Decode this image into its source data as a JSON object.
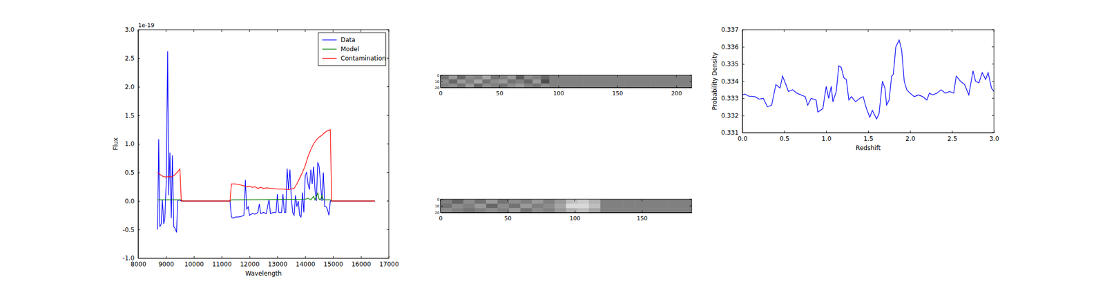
{
  "chart_data": [
    {
      "type": "line",
      "x_label": "Wavelength",
      "y_label": "Flux",
      "annotations": [
        {
          "text": "1e-19"
        }
      ],
      "xlim": [
        8000,
        17000
      ],
      "xticks": [
        8000,
        9000,
        10000,
        11000,
        12000,
        13000,
        14000,
        15000,
        16000,
        17000
      ],
      "ylim": [
        -1.0,
        3.0
      ],
      "yticks": [
        {
          "value": -1.0,
          "label": "-1.0"
        },
        {
          "value": -0.5,
          "label": "-0.5"
        },
        {
          "value": 0.0,
          "label": "0.0"
        },
        {
          "value": 0.5,
          "label": "0.5"
        },
        {
          "value": 1.0,
          "label": "1.0"
        },
        {
          "value": 1.5,
          "label": "1.5"
        },
        {
          "value": 2.0,
          "label": "2.0"
        },
        {
          "value": 2.5,
          "label": "2.5"
        },
        {
          "value": 3.0,
          "label": "3.0"
        }
      ],
      "legend": "upper right",
      "series": [
        {
          "name": "Data",
          "color": "#0000ff",
          "x": [
            8700,
            8740,
            8780,
            8830,
            8870,
            8920,
            8960,
            9010,
            9060,
            9100,
            9140,
            9190,
            9230,
            9280,
            9330,
            9380,
            9420,
            9470,
            9550,
            11300,
            11350,
            11400,
            11500,
            11600,
            11700,
            11800,
            11850,
            11900,
            11950,
            12000,
            12100,
            12200,
            12300,
            12350,
            12400,
            12500,
            12600,
            12700,
            12750,
            12850,
            12950,
            13000,
            13050,
            13150,
            13200,
            13250,
            13300,
            13350,
            13400,
            13450,
            13500,
            13550,
            13600,
            13650,
            13700,
            13750,
            13800,
            13850,
            13900,
            13950,
            14000,
            14050,
            14100,
            14150,
            14200,
            14250,
            14300,
            14350,
            14400,
            14450,
            14500,
            14550,
            14600,
            14650,
            14700,
            14750,
            14800,
            14850,
            14900,
            14950,
            16500
          ],
          "values": [
            -0.5,
            1.08,
            -0.45,
            -0.4,
            0.02,
            -0.4,
            -0.3,
            0.35,
            2.62,
            0.1,
            0.85,
            -0.3,
            0.8,
            -0.45,
            -0.48,
            -0.55,
            0.0,
            0.02,
            0.0,
            0.0,
            -0.28,
            -0.3,
            -0.28,
            -0.28,
            -0.27,
            -0.25,
            0.37,
            -0.15,
            -0.1,
            -0.25,
            -0.22,
            -0.23,
            -0.2,
            -0.05,
            -0.22,
            -0.2,
            -0.22,
            0.03,
            -0.22,
            -0.2,
            -0.2,
            0.12,
            -0.2,
            -0.2,
            0.12,
            -0.2,
            -0.2,
            0.57,
            0.2,
            0.55,
            0.05,
            -0.2,
            -0.25,
            0.1,
            -0.1,
            0.0,
            -0.25,
            -0.28,
            0.15,
            -0.2,
            0.45,
            0.5,
            0.3,
            0.2,
            0.55,
            0.3,
            0.6,
            0.2,
            0.0,
            0.68,
            0.6,
            0.3,
            0.0,
            0.5,
            -0.1,
            -0.1,
            -0.15,
            -0.25,
            0.0,
            0.0,
            0.0
          ]
        },
        {
          "name": "Model",
          "color": "#008000",
          "x": [
            8700,
            9550,
            9600,
            11300,
            11350,
            14000,
            14100,
            14200,
            14300,
            14350,
            14450,
            14500,
            14550,
            14600,
            14650,
            14900,
            14950,
            16500
          ],
          "values": [
            0.02,
            0.02,
            0.0,
            0.0,
            0.02,
            0.03,
            0.05,
            0.02,
            0.08,
            0.02,
            0.14,
            0.03,
            0.02,
            0.1,
            0.02,
            0.02,
            0.0,
            0.0
          ]
        },
        {
          "name": "Contamination",
          "color": "#ff0000",
          "x": [
            8700,
            8800,
            8900,
            9000,
            9100,
            9200,
            9300,
            9400,
            9500,
            9550,
            11300,
            11350,
            11500,
            11700,
            11900,
            12000,
            12100,
            12200,
            12300,
            12400,
            12500,
            12600,
            12800,
            13000,
            13200,
            13400,
            13600,
            13700,
            13800,
            13900,
            14000,
            14100,
            14200,
            14300,
            14400,
            14500,
            14600,
            14700,
            14800,
            14900,
            14950,
            16500
          ],
          "values": [
            0.5,
            0.46,
            0.43,
            0.42,
            0.43,
            0.42,
            0.45,
            0.5,
            0.56,
            0.0,
            0.0,
            0.3,
            0.3,
            0.28,
            0.25,
            0.26,
            0.24,
            0.25,
            0.22,
            0.24,
            0.22,
            0.23,
            0.22,
            0.21,
            0.21,
            0.2,
            0.22,
            0.3,
            0.4,
            0.5,
            0.62,
            0.78,
            0.9,
            1.0,
            1.07,
            1.12,
            1.15,
            1.2,
            1.23,
            1.25,
            0.0,
            0.0
          ]
        }
      ]
    },
    {
      "type": "heatmap",
      "xlim": [
        0,
        213
      ],
      "xticks": [
        0,
        50,
        100,
        150,
        200
      ],
      "ylim": [
        0,
        20
      ],
      "yticks": [
        0,
        10,
        20
      ],
      "color_range": [
        0,
        1
      ],
      "cells": [
        [
          0.45,
          0.6,
          0.4,
          0.55,
          0.5,
          0.65,
          0.45,
          0.5,
          0.6,
          0.35,
          0.55,
          0.5,
          0.4,
          0.5,
          0.5,
          0.5,
          0.5,
          0.5,
          0.5,
          0.5,
          0.5,
          0.5,
          0.5,
          0.5,
          0.5,
          0.5,
          0.5,
          0.5,
          0.5,
          0.5
        ],
        [
          0.55,
          0.4,
          0.6,
          0.5,
          0.65,
          0.45,
          0.55,
          0.6,
          0.45,
          0.5,
          0.4,
          0.6,
          0.3,
          0.5,
          0.5,
          0.5,
          0.5,
          0.5,
          0.5,
          0.5,
          0.5,
          0.5,
          0.5,
          0.5,
          0.5,
          0.5,
          0.5,
          0.5,
          0.5,
          0.5
        ],
        [
          0.5,
          0.55,
          0.45,
          0.6,
          0.4,
          0.55,
          0.5,
          0.45,
          0.55,
          0.6,
          0.5,
          0.45,
          0.55,
          0.5,
          0.5,
          0.5,
          0.5,
          0.5,
          0.5,
          0.5,
          0.5,
          0.5,
          0.5,
          0.5,
          0.5,
          0.5,
          0.5,
          0.5,
          0.5,
          0.5
        ]
      ]
    },
    {
      "type": "heatmap",
      "xlim": [
        0,
        187
      ],
      "xticks": [
        0,
        50,
        100,
        150
      ],
      "ylim": [
        0,
        20
      ],
      "yticks": [
        0,
        10,
        20
      ],
      "color_range": [
        0,
        1
      ],
      "cells": [
        [
          0.5,
          0.4,
          0.55,
          0.45,
          0.6,
          0.45,
          0.55,
          0.5,
          0.6,
          0.5,
          0.6,
          0.75,
          0.8,
          0.7,
          0.5,
          0.5,
          0.5,
          0.5,
          0.5,
          0.5,
          0.5,
          0.5
        ],
        [
          0.45,
          0.55,
          0.5,
          0.6,
          0.4,
          0.55,
          0.45,
          0.6,
          0.5,
          0.55,
          0.65,
          0.85,
          0.85,
          0.75,
          0.5,
          0.5,
          0.5,
          0.5,
          0.5,
          0.5,
          0.5,
          0.5
        ],
        [
          0.55,
          0.5,
          0.45,
          0.5,
          0.55,
          0.5,
          0.6,
          0.45,
          0.55,
          0.5,
          0.6,
          0.7,
          0.75,
          0.65,
          0.5,
          0.5,
          0.5,
          0.5,
          0.5,
          0.5,
          0.5,
          0.5
        ]
      ]
    },
    {
      "type": "line",
      "x_label": "Redshift",
      "y_label": "Probability Density",
      "xlim": [
        0.0,
        3.0
      ],
      "xticks": [
        {
          "value": 0.0,
          "label": "0.0"
        },
        {
          "value": 0.5,
          "label": "0.5"
        },
        {
          "value": 1.0,
          "label": "1.0"
        },
        {
          "value": 1.5,
          "label": "1.5"
        },
        {
          "value": 2.0,
          "label": "2.0"
        },
        {
          "value": 2.5,
          "label": "2.5"
        },
        {
          "value": 3.0,
          "label": "3.0"
        }
      ],
      "ylim": [
        0.331,
        0.337
      ],
      "yticks": [
        0.331,
        0.332,
        0.333,
        0.334,
        0.335,
        0.336,
        0.337
      ],
      "series": [
        {
          "color": "#0000ff",
          "x": [
            0.0,
            0.03,
            0.08,
            0.15,
            0.2,
            0.25,
            0.3,
            0.35,
            0.4,
            0.45,
            0.48,
            0.52,
            0.55,
            0.6,
            0.65,
            0.7,
            0.75,
            0.78,
            0.82,
            0.88,
            0.9,
            0.96,
            1.0,
            1.03,
            1.06,
            1.08,
            1.12,
            1.15,
            1.18,
            1.21,
            1.24,
            1.27,
            1.3,
            1.35,
            1.4,
            1.44,
            1.48,
            1.52,
            1.55,
            1.6,
            1.63,
            1.67,
            1.7,
            1.72,
            1.75,
            1.78,
            1.8,
            1.83,
            1.87,
            1.9,
            1.93,
            1.96,
            2.0,
            2.05,
            2.1,
            2.15,
            2.2,
            2.23,
            2.27,
            2.32,
            2.37,
            2.42,
            2.47,
            2.52,
            2.55,
            2.6,
            2.65,
            2.7,
            2.75,
            2.78,
            2.82,
            2.86,
            2.9,
            2.93,
            2.97,
            3.0
          ],
          "values": [
            0.3332,
            0.33325,
            0.33312,
            0.3331,
            0.33295,
            0.333,
            0.3325,
            0.3326,
            0.3338,
            0.3336,
            0.3343,
            0.3338,
            0.3334,
            0.3335,
            0.3333,
            0.3332,
            0.3331,
            0.3326,
            0.333,
            0.3329,
            0.3322,
            0.3324,
            0.3337,
            0.333,
            0.3337,
            0.3328,
            0.3334,
            0.3349,
            0.3348,
            0.3342,
            0.3341,
            0.3329,
            0.3331,
            0.3328,
            0.333,
            0.3331,
            0.3324,
            0.3319,
            0.3323,
            0.3318,
            0.3321,
            0.334,
            0.3336,
            0.3326,
            0.3329,
            0.3343,
            0.3344,
            0.336,
            0.3364,
            0.3358,
            0.334,
            0.3335,
            0.3333,
            0.3331,
            0.3332,
            0.3331,
            0.3329,
            0.3333,
            0.3332,
            0.3333,
            0.3335,
            0.3333,
            0.3334,
            0.3333,
            0.3343,
            0.334,
            0.3338,
            0.3332,
            0.3346,
            0.334,
            0.3339,
            0.3345,
            0.3341,
            0.3345,
            0.3336,
            0.3334
          ]
        }
      ]
    }
  ]
}
